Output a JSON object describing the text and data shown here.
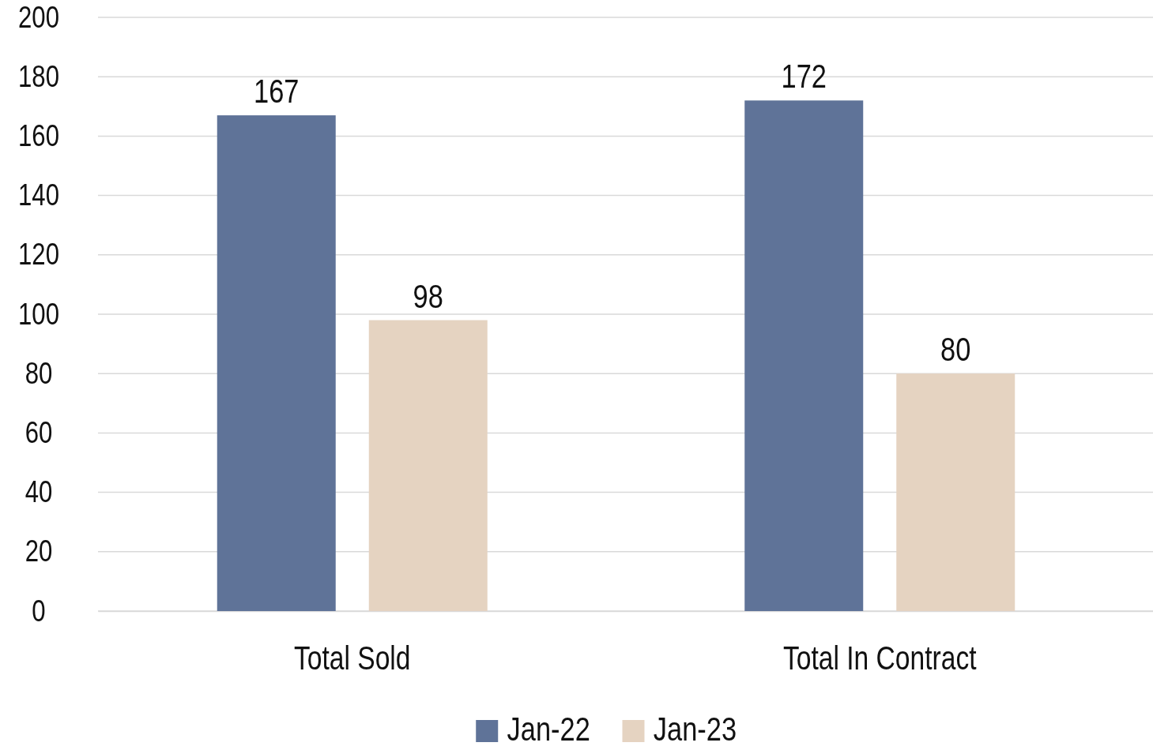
{
  "chart_data": {
    "type": "bar",
    "categories": [
      "Total Sold",
      "Total In Contract"
    ],
    "series": [
      {
        "name": "Jan-22",
        "color": "#5f7398",
        "values": [
          167,
          172
        ]
      },
      {
        "name": "Jan-23",
        "color": "#e5d3c1",
        "values": [
          98,
          80
        ]
      }
    ],
    "ylim": [
      0,
      200
    ],
    "yticks": [
      0,
      20,
      40,
      60,
      80,
      100,
      120,
      140,
      160,
      180,
      200
    ],
    "grid": "y",
    "legend": "bottom",
    "data_labels": true
  }
}
